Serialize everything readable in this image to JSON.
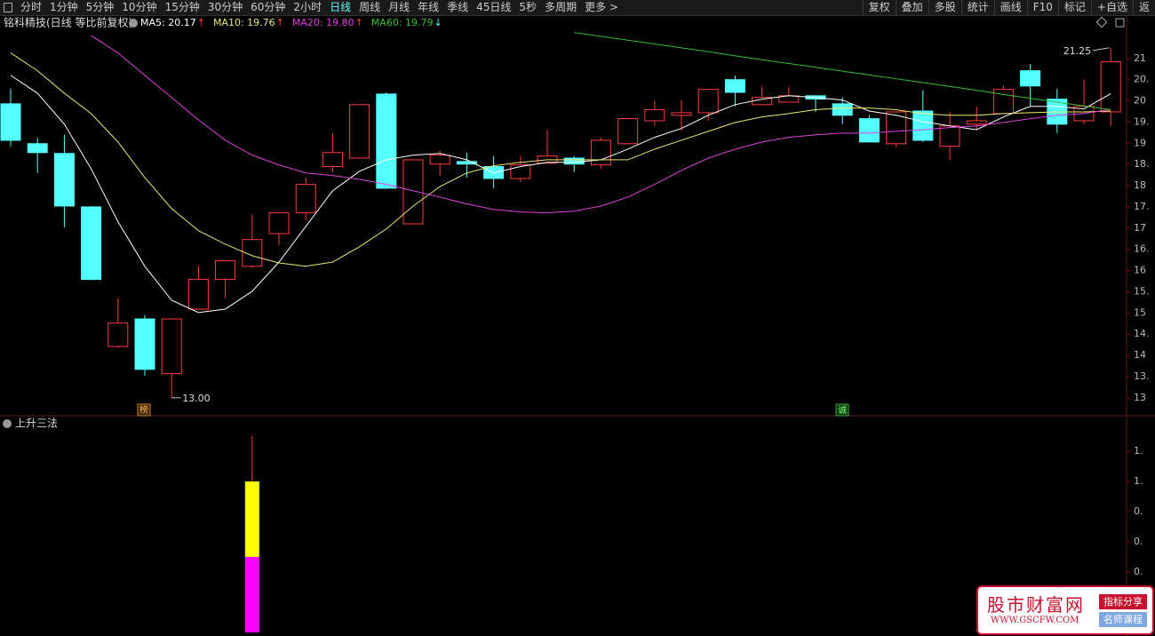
{
  "toolbar": {
    "left": [
      "分时",
      "1分钟",
      "5分钟",
      "10分钟",
      "15分钟",
      "30分钟",
      "60分钟",
      "2小时",
      "日线",
      "周线",
      "月线",
      "年线",
      "季线",
      "45日线",
      "5秒",
      "多周期",
      "更多 >"
    ],
    "active": 8,
    "right": [
      "复权",
      "叠加",
      "多股",
      "统计",
      "画线",
      "F10",
      "标记",
      "+自选",
      "返"
    ]
  },
  "header": {
    "title": "铭科精技(日线 等比前复权)",
    "ma": [
      {
        "label": "MA5: 20.17",
        "arrow": "↑",
        "color": "#ffffff",
        "values": [
          20.6,
          20.18,
          19.45,
          18.4,
          17.15,
          16.1,
          15.3,
          15.01,
          15.09,
          15.51,
          16.2,
          17.04,
          17.88,
          18.34,
          18.61,
          18.72,
          18.76,
          18.61,
          18.3,
          18.45,
          18.55,
          18.55,
          18.61,
          18.86,
          19.14,
          19.35,
          19.66,
          19.91,
          20.04,
          20.12,
          20.08,
          20.02,
          19.76,
          19.66,
          19.51,
          19.41,
          19.32,
          19.62,
          19.87,
          19.87,
          19.81,
          20.17
        ]
      },
      {
        "label": "MA10: 19.76",
        "arrow": "↑",
        "color": "#e8e870",
        "values": [
          21.13,
          20.71,
          20.18,
          19.7,
          19.03,
          18.19,
          17.46,
          16.94,
          16.62,
          16.35,
          16.18,
          16.1,
          16.2,
          16.56,
          16.98,
          17.52,
          17.98,
          18.3,
          18.47,
          18.55,
          18.61,
          18.61,
          18.61,
          18.61,
          18.86,
          19.07,
          19.28,
          19.49,
          19.62,
          19.7,
          19.79,
          19.83,
          19.83,
          19.79,
          19.7,
          19.66,
          19.66,
          19.7,
          19.72,
          19.74,
          19.74,
          19.76
        ]
      },
      {
        "label": "MA20: 19.80",
        "arrow": "↑",
        "color": "#e040e0",
        "values": [
          null,
          null,
          null,
          21.54,
          21.13,
          20.6,
          20.08,
          19.55,
          19.07,
          18.72,
          18.49,
          18.3,
          18.24,
          18.15,
          18.03,
          17.88,
          17.73,
          17.57,
          17.44,
          17.38,
          17.36,
          17.4,
          17.52,
          17.73,
          18.03,
          18.36,
          18.65,
          18.86,
          19.03,
          19.14,
          19.2,
          19.24,
          19.24,
          19.28,
          19.32,
          19.37,
          19.41,
          19.49,
          19.58,
          19.66,
          19.7,
          19.8
        ]
      },
      {
        "label": "MA60: 19.79",
        "arrow": "↓",
        "color": "#30c030",
        "values": [
          null,
          null,
          null,
          null,
          null,
          null,
          null,
          null,
          null,
          null,
          null,
          null,
          null,
          null,
          null,
          null,
          null,
          null,
          null,
          null,
          null,
          21.61,
          21.52,
          21.43,
          21.34,
          21.25,
          21.16,
          21.06,
          20.97,
          20.88,
          20.79,
          20.7,
          20.61,
          20.52,
          20.43,
          20.34,
          20.25,
          20.15,
          20.06,
          19.97,
          19.88,
          19.79
        ]
      }
    ]
  },
  "price_panel": {
    "ylim": [
      12.62,
      22.0
    ],
    "yticks": [
      {
        "value": 21,
        "label": "21"
      },
      {
        "value": 20.5,
        "label": "20."
      },
      {
        "value": 20,
        "label": "20"
      },
      {
        "value": 19.5,
        "label": "19."
      },
      {
        "value": 19,
        "label": "19"
      },
      {
        "value": 18.5,
        "label": "18."
      },
      {
        "value": 18,
        "label": "18"
      },
      {
        "value": 17.5,
        "label": "17."
      },
      {
        "value": 17,
        "label": "17"
      },
      {
        "value": 16.5,
        "label": "16."
      },
      {
        "value": 16,
        "label": "16"
      },
      {
        "value": 15.5,
        "label": "15."
      },
      {
        "value": 15,
        "label": "15"
      },
      {
        "value": 14.5,
        "label": "14."
      },
      {
        "value": 14,
        "label": "14"
      },
      {
        "value": 13.5,
        "label": "13."
      },
      {
        "value": 13,
        "label": "13"
      }
    ],
    "up_color": "#ff3c3c",
    "down_color": "#54ffff",
    "open": [
      19.93,
      18.99,
      18.76,
      17.5,
      14.21,
      14.86,
      13.57,
      15.09,
      15.79,
      16.1,
      16.87,
      17.36,
      18.45,
      18.65,
      20.16,
      17.1,
      18.51,
      18.57,
      18.45,
      18.17,
      18.53,
      18.65,
      18.49,
      18.99,
      19.53,
      19.66,
      19.72,
      20.5,
      19.91,
      19.97,
      20.12,
      19.93,
      19.58,
      18.99,
      19.76,
      18.93,
      19.45,
      19.7,
      20.71,
      20.04,
      19.53,
      19.74
    ],
    "high": [
      20.29,
      19.13,
      19.2,
      17.52,
      15.35,
      14.95,
      14.86,
      16.1,
      16.23,
      17.31,
      17.36,
      18.19,
      19.24,
      19.91,
      20.2,
      18.61,
      18.82,
      18.78,
      18.7,
      18.7,
      19.32,
      18.7,
      19.13,
      19.58,
      20.0,
      20.02,
      20.27,
      20.6,
      20.33,
      20.33,
      20.12,
      20.08,
      19.66,
      19.74,
      20.25,
      19.74,
      19.87,
      20.35,
      20.87,
      20.29,
      20.5,
      21.25
    ],
    "low": [
      18.93,
      18.3,
      17.02,
      15.77,
      14.17,
      13.52,
      13.0,
      15.09,
      15.35,
      16.06,
      16.6,
      17.19,
      18.32,
      18.65,
      17.94,
      17.1,
      18.24,
      18.19,
      17.94,
      18.09,
      18.53,
      18.32,
      18.4,
      18.99,
      19.41,
      19.3,
      19.53,
      19.87,
      19.91,
      19.97,
      19.74,
      19.45,
      19.03,
      18.91,
      19.03,
      18.61,
      19.32,
      19.7,
      19.87,
      19.24,
      19.45,
      19.41
    ],
    "close": [
      19.07,
      18.78,
      17.52,
      15.79,
      14.76,
      13.67,
      14.86,
      15.79,
      16.23,
      16.73,
      17.36,
      18.03,
      18.78,
      19.91,
      17.94,
      18.61,
      18.72,
      18.51,
      18.17,
      18.49,
      18.7,
      18.51,
      19.07,
      19.58,
      19.79,
      19.72,
      20.27,
      20.2,
      20.08,
      20.12,
      20.04,
      19.66,
      19.03,
      19.74,
      19.07,
      19.41,
      19.53,
      20.27,
      20.35,
      19.45,
      19.87,
      20.92
    ],
    "high_label": "21.25",
    "low_label": "13.00",
    "markers": [
      "榜",
      "诚"
    ]
  },
  "lower_panel": {
    "title": "上升三法",
    "ylim": [
      0,
      1.4
    ],
    "yticks": [
      {
        "value": 1.2,
        "label": "1."
      },
      {
        "value": 1.0,
        "label": "1."
      },
      {
        "value": 0.8,
        "label": "0."
      },
      {
        "value": 0.6,
        "label": "0."
      },
      {
        "value": 0.4,
        "label": "0."
      }
    ],
    "series": [
      {
        "color": "#ff00ff",
        "values": [
          null,
          null,
          null,
          null,
          null,
          null,
          null,
          null,
          null,
          0.5,
          null,
          null,
          null,
          null,
          null,
          null,
          null,
          null,
          null,
          null,
          null,
          null,
          null,
          null,
          null,
          null,
          null,
          null,
          null,
          null,
          null,
          null,
          null,
          null,
          null,
          null,
          null,
          null,
          null,
          null,
          null,
          null
        ]
      },
      {
        "color": "#ffff00",
        "values": [
          null,
          null,
          null,
          null,
          null,
          null,
          null,
          null,
          null,
          0.5,
          null,
          null,
          null,
          null,
          null,
          null,
          null,
          null,
          null,
          null,
          null,
          null,
          null,
          null,
          null,
          null,
          null,
          null,
          null,
          null,
          null,
          null,
          null,
          null,
          null,
          null,
          null,
          null,
          null,
          null,
          null,
          null
        ]
      }
    ],
    "high_color": "#ff3c3c",
    "high": [
      null,
      null,
      null,
      null,
      null,
      null,
      null,
      null,
      null,
      1.3,
      null,
      null,
      null,
      null,
      null,
      null,
      null,
      null,
      null,
      null,
      null,
      null,
      null,
      null,
      null,
      null,
      null,
      null,
      null,
      null,
      null,
      null,
      null,
      null,
      null,
      null,
      null,
      null,
      null,
      null,
      null,
      null
    ]
  },
  "watermark": {
    "name": "股市财富网",
    "url": "WWW.GSCFW.COM",
    "tag1": "指标分享",
    "tag2": "名师课程"
  }
}
